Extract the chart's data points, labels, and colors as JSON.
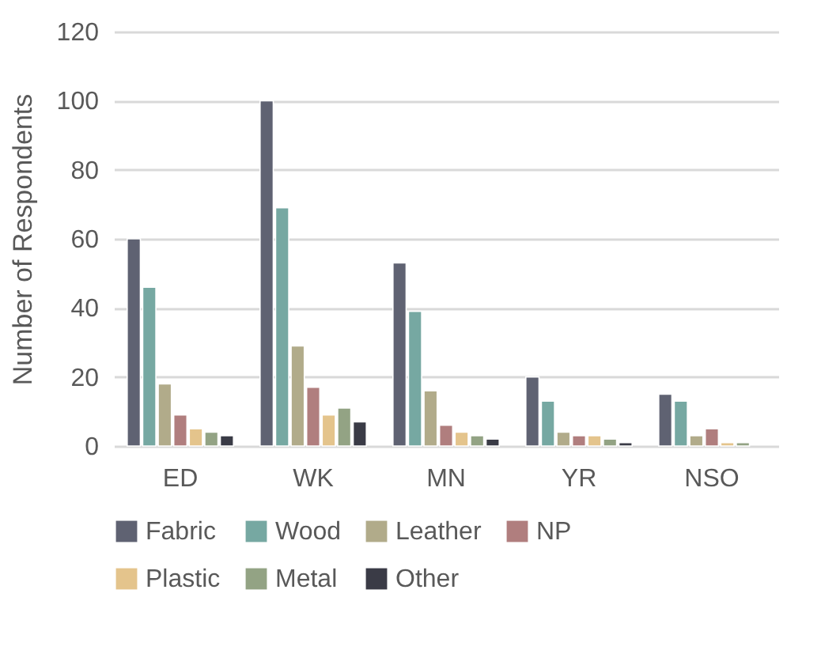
{
  "chart_data": {
    "type": "bar",
    "ylabel": "Number of Respondents",
    "categories": [
      "ED",
      "WK",
      "MN",
      "YR",
      "NSO"
    ],
    "series": [
      {
        "name": "Fabric",
        "color": "#5f6272",
        "values": [
          60,
          100,
          53,
          20,
          15
        ]
      },
      {
        "name": "Wood",
        "color": "#76a8a2",
        "values": [
          46,
          69,
          39,
          13,
          13
        ]
      },
      {
        "name": "Leather",
        "color": "#b1ab8a",
        "values": [
          18,
          29,
          16,
          4,
          3
        ]
      },
      {
        "name": "NP",
        "color": "#b07e7e",
        "values": [
          9,
          17,
          6,
          3,
          5
        ]
      },
      {
        "name": "Plastic",
        "color": "#e4c48c",
        "values": [
          5,
          9,
          4,
          3,
          1
        ]
      },
      {
        "name": "Metal",
        "color": "#93a384",
        "values": [
          4,
          11,
          3,
          2,
          1
        ]
      },
      {
        "name": "Other",
        "color": "#3a3b46",
        "values": [
          3,
          7,
          2,
          1,
          null
        ]
      }
    ],
    "ylim": [
      0,
      120
    ],
    "yticks": [
      0,
      20,
      40,
      60,
      80,
      100,
      120
    ],
    "grid": "y",
    "legend": "bottom"
  }
}
